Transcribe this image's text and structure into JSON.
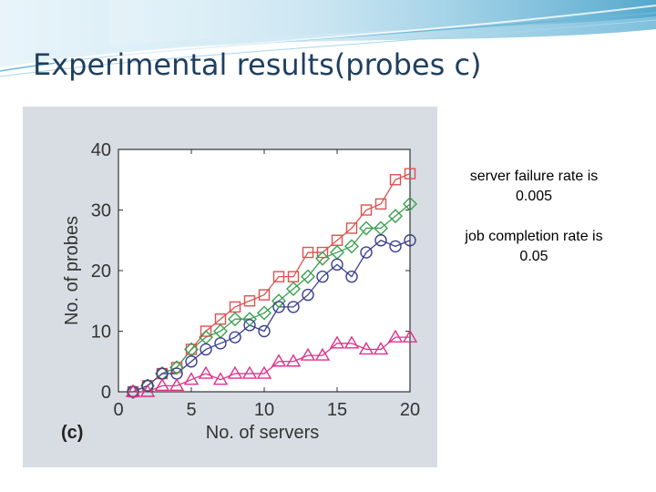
{
  "slide": {
    "title": "Experimental results(probes c)"
  },
  "notes": [
    {
      "line1": "server failure rate is",
      "line2": "0.005"
    },
    {
      "line1": "job completion rate is",
      "line2": "0.05"
    }
  ],
  "colors": {
    "banner_light": "#dceef6",
    "banner_mid": "#9fd0e6",
    "banner_dark": "#4aa3c8",
    "panel": "#d8dde3",
    "squares": "#e05050",
    "diamonds": "#3aa050",
    "circles": "#3a3f8f",
    "triangles": "#e0308a"
  },
  "chart_data": {
    "type": "line",
    "panel_label": "(c)",
    "xlabel": "No. of servers",
    "ylabel": "No. of probes",
    "xlim": [
      0,
      20
    ],
    "ylim": [
      0,
      40
    ],
    "xticks": [
      0,
      5,
      10,
      15,
      20
    ],
    "yticks": [
      0,
      10,
      20,
      30,
      40
    ],
    "grid": false,
    "legend": "none",
    "x": [
      1,
      2,
      3,
      4,
      5,
      6,
      7,
      8,
      9,
      10,
      11,
      12,
      13,
      14,
      15,
      16,
      17,
      18,
      19,
      20
    ],
    "series": [
      {
        "marker": "square",
        "color": "#e05050",
        "values": [
          0,
          1,
          3,
          4,
          7,
          10,
          12,
          14,
          15,
          16,
          19,
          19,
          23,
          23,
          25,
          27,
          30,
          31,
          35,
          36
        ]
      },
      {
        "marker": "diamond",
        "color": "#3aa050",
        "values": [
          0,
          1,
          3,
          4,
          7,
          9,
          10,
          12,
          12,
          13,
          15,
          17,
          19,
          22,
          23,
          24,
          27,
          27,
          29,
          31
        ]
      },
      {
        "marker": "circle",
        "color": "#3a3f8f",
        "values": [
          0,
          1,
          3,
          3,
          5,
          7,
          8,
          9,
          11,
          10,
          14,
          14,
          16,
          19,
          21,
          19,
          23,
          25,
          24,
          25
        ]
      },
      {
        "marker": "triangle",
        "color": "#e0308a",
        "values": [
          0,
          0,
          1,
          1,
          2,
          3,
          2,
          3,
          3,
          3,
          5,
          5,
          6,
          6,
          8,
          8,
          7,
          7,
          9,
          9
        ]
      }
    ]
  }
}
